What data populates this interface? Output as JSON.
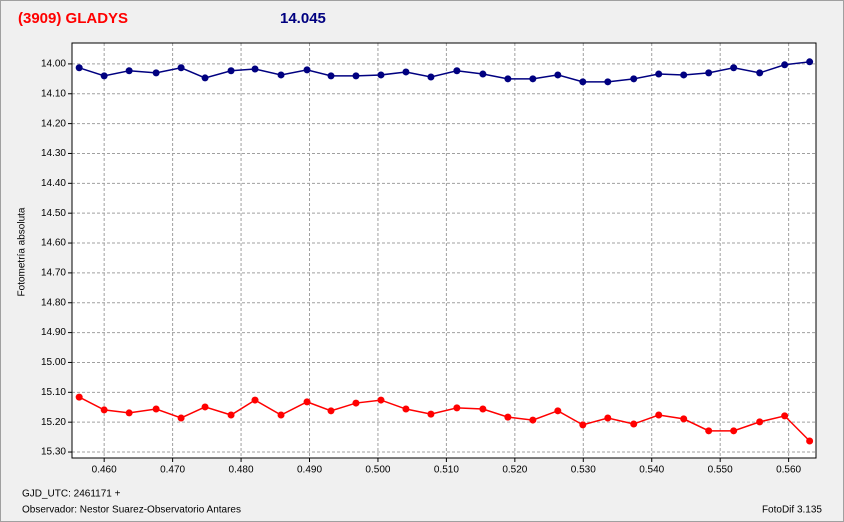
{
  "chart_data": {
    "type": "line",
    "title": "(3909) GLADYS",
    "subtitle": "14.045",
    "y_label": "Fotometría absoluta",
    "x_label": "GJD_UTC: 2461171 +",
    "footer_left": "Observador: Nestor Suarez-Observatorio Antares",
    "footer_right": "FotoDif 3.135",
    "y_inverted": true,
    "grid": true,
    "xlim": [
      0.4553,
      0.564
    ],
    "ylim": [
      13.93,
      15.32
    ],
    "xticks": [
      {
        "value": 0.46,
        "label": "0.460"
      },
      {
        "value": 0.47,
        "label": "0.470"
      },
      {
        "value": 0.48,
        "label": "0.480"
      },
      {
        "value": 0.49,
        "label": "0.490"
      },
      {
        "value": 0.5,
        "label": "0.500"
      },
      {
        "value": 0.51,
        "label": "0.510"
      },
      {
        "value": 0.52,
        "label": "0.520"
      },
      {
        "value": 0.53,
        "label": "0.530"
      },
      {
        "value": 0.54,
        "label": "0.540"
      },
      {
        "value": 0.55,
        "label": "0.550"
      },
      {
        "value": 0.56,
        "label": "0.560"
      }
    ],
    "yticks": [
      {
        "value": 14.0,
        "label": "14.00"
      },
      {
        "value": 14.1,
        "label": "14.10"
      },
      {
        "value": 14.2,
        "label": "14.20"
      },
      {
        "value": 14.3,
        "label": "14.30"
      },
      {
        "value": 14.4,
        "label": "14.40"
      },
      {
        "value": 14.5,
        "label": "14.50"
      },
      {
        "value": 14.6,
        "label": "14.60"
      },
      {
        "value": 14.7,
        "label": "14.70"
      },
      {
        "value": 14.8,
        "label": "14.80"
      },
      {
        "value": 14.9,
        "label": "14.90"
      },
      {
        "value": 15.0,
        "label": "15.00"
      },
      {
        "value": 15.1,
        "label": "15.10"
      },
      {
        "value": 15.2,
        "label": "15.20"
      },
      {
        "value": 15.3,
        "label": "15.30"
      }
    ],
    "x": [
      0.45635,
      0.46,
      0.46365,
      0.46759,
      0.47124,
      0.47474,
      0.47854,
      0.48204,
      0.48584,
      0.48964,
      0.49314,
      0.49679,
      0.50044,
      0.50409,
      0.50774,
      0.51153,
      0.51533,
      0.51898,
      0.52263,
      0.52628,
      0.52993,
      0.53358,
      0.53737,
      0.54102,
      0.54467,
      0.54832,
      0.55197,
      0.55577,
      0.55942,
      0.56307
    ],
    "series": [
      {
        "color": "#000080",
        "values": [
          14.013,
          14.04,
          14.023,
          14.03,
          14.013,
          14.047,
          14.023,
          14.017,
          14.037,
          14.02,
          14.04,
          14.04,
          14.037,
          14.027,
          14.044,
          14.023,
          14.034,
          14.05,
          14.05,
          14.037,
          14.06,
          14.06,
          14.05,
          14.034,
          14.037,
          14.03,
          14.013,
          14.03,
          14.003,
          13.993
        ]
      },
      {
        "color": "#ff0000",
        "values": [
          15.116,
          15.159,
          15.169,
          15.156,
          15.186,
          15.149,
          15.176,
          15.126,
          15.176,
          15.132,
          15.162,
          15.136,
          15.126,
          15.156,
          15.173,
          15.152,
          15.156,
          15.183,
          15.193,
          15.162,
          15.209,
          15.186,
          15.206,
          15.176,
          15.189,
          15.229,
          15.229,
          15.199,
          15.179,
          15.263
        ]
      }
    ]
  }
}
